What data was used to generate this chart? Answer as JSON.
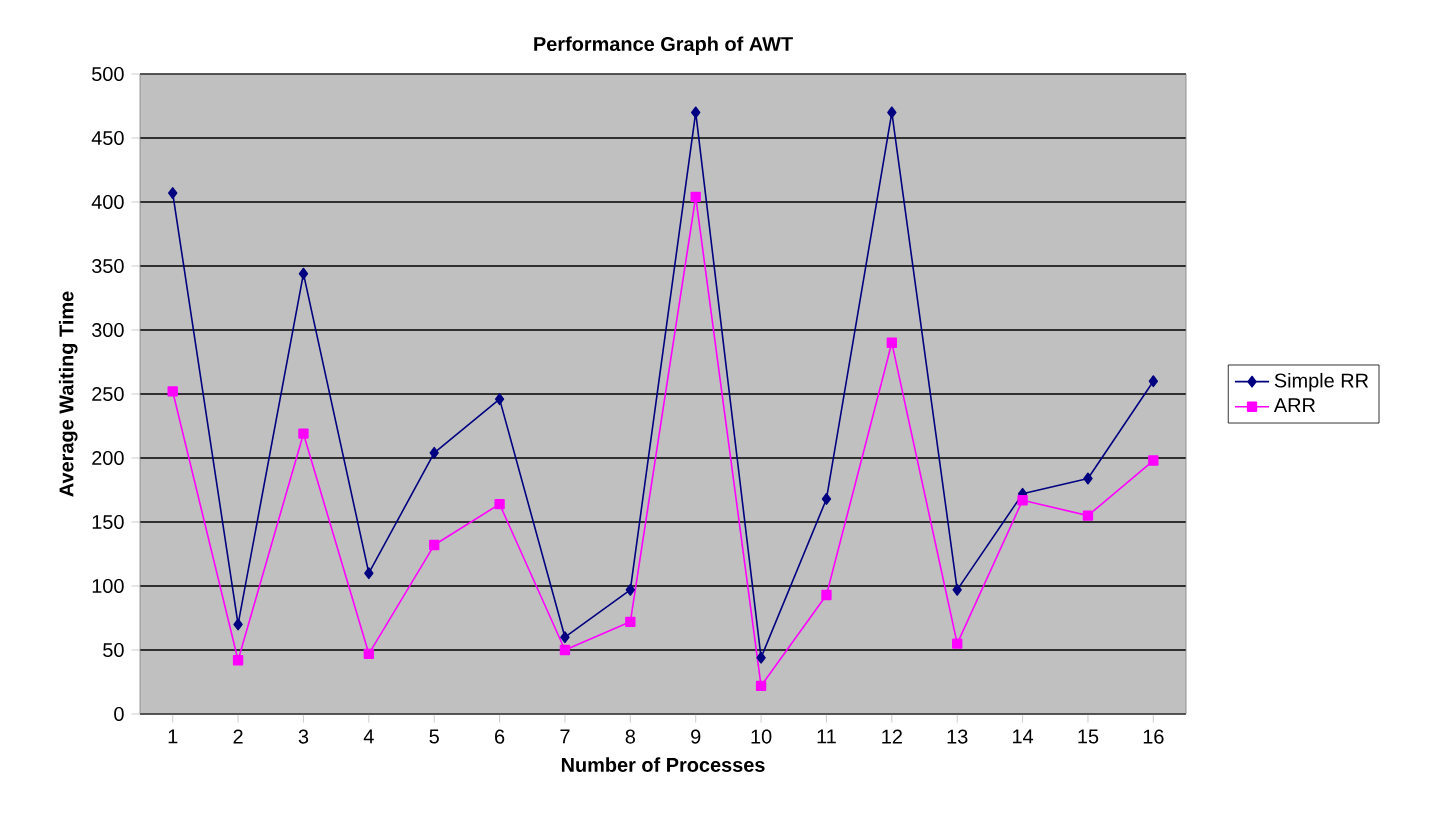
{
  "chart_data": {
    "type": "line",
    "title": "Performance Graph of AWT",
    "xlabel": "Number of Processes",
    "ylabel": "Average Waiting Time",
    "categories": [
      "1",
      "2",
      "3",
      "4",
      "5",
      "6",
      "7",
      "8",
      "9",
      "10",
      "11",
      "12",
      "13",
      "14",
      "15",
      "16"
    ],
    "series": [
      {
        "name": "Simple RR",
        "color": "#000080",
        "marker": "diamond",
        "values": [
          407,
          70,
          344,
          110,
          204,
          246,
          60,
          97,
          470,
          44,
          168,
          470,
          97,
          172,
          184,
          260
        ]
      },
      {
        "name": "ARR",
        "color": "#ff00ff",
        "marker": "square",
        "values": [
          252,
          42,
          219,
          47,
          132,
          164,
          50,
          72,
          404,
          22,
          93,
          290,
          55,
          167,
          155,
          198
        ]
      }
    ],
    "ylim": [
      0,
      500
    ],
    "yticks": [
      0,
      50,
      100,
      150,
      200,
      250,
      300,
      350,
      400,
      450,
      500
    ],
    "grid": "y",
    "legend": "right"
  }
}
